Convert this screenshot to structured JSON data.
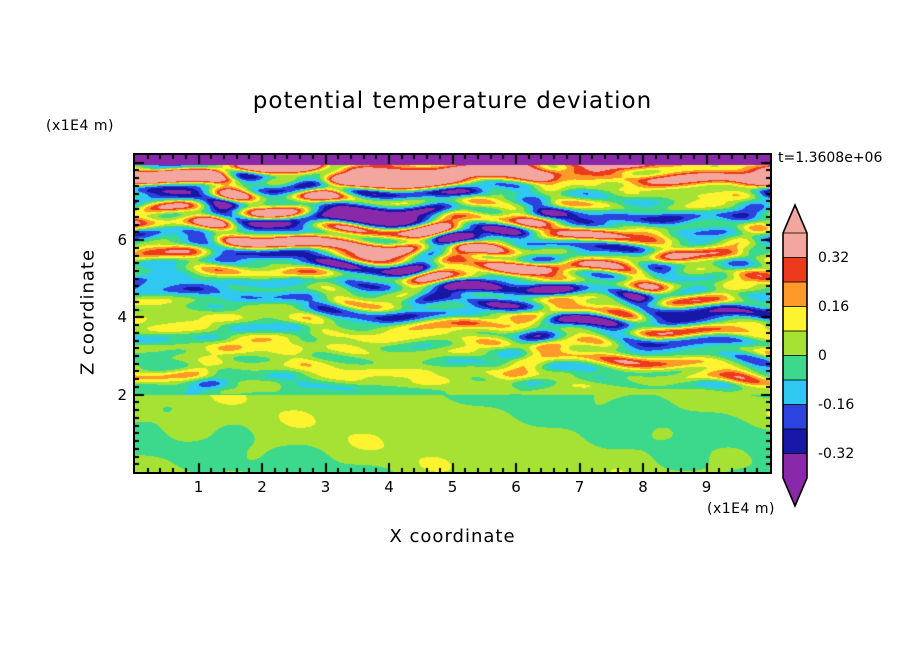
{
  "title": "potential temperature deviation",
  "time_label": "t=1.3608e+06",
  "x_axis": {
    "label": "X coordinate",
    "unit_label": "(x1E4 m)",
    "tick_labels": [
      "1",
      "2",
      "3",
      "4",
      "5",
      "6",
      "7",
      "8",
      "9"
    ],
    "range": [
      0,
      10
    ]
  },
  "z_axis": {
    "label": "Z coordinate",
    "unit_label": "(x1E4 m)",
    "tick_labels": [
      "2",
      "4",
      "6"
    ],
    "range": [
      0,
      8.2
    ]
  },
  "colorbar": {
    "tick_labels": [
      "0.32",
      "0.16",
      "0",
      "-0.16",
      "-0.32"
    ],
    "boundary_indices": [
      1,
      3,
      5,
      7,
      9
    ],
    "segment_colors_top_to_bottom": [
      "#f2a69e",
      "#ee3a1c",
      "#ff9a28",
      "#fdf32f",
      "#a6e234",
      "#3cd98c",
      "#2fc8f0",
      "#2d43e0",
      "#1717a8",
      "#8a28aa"
    ],
    "arrow_top_color": "#f2a69e",
    "arrow_bottom_color": "#8a28aa"
  },
  "chart_data": {
    "type": "heatmap",
    "title": "potential temperature deviation",
    "xlabel": "X coordinate (x1E4 m)",
    "ylabel": "Z coordinate (x1E4 m)",
    "x_range": [
      0,
      10
    ],
    "z_range": [
      0,
      8.2
    ],
    "x_ticks": [
      1,
      2,
      3,
      4,
      5,
      6,
      7,
      8,
      9
    ],
    "z_ticks": [
      2,
      4,
      6
    ],
    "time_annotation": "t=1.3608e+06",
    "value_levels": [
      -0.4,
      -0.32,
      -0.24,
      -0.16,
      -0.08,
      0,
      0.08,
      0.16,
      0.24,
      0.32,
      0.4
    ],
    "labeled_levels": [
      0.32,
      0.16,
      0,
      -0.16,
      -0.32
    ],
    "palette_low_to_high": [
      "#8a28aa",
      "#1717a8",
      "#2d43e0",
      "#2fc8f0",
      "#3cd98c",
      "#a6e234",
      "#fdf32f",
      "#ff9a28",
      "#ee3a1c",
      "#f2a69e"
    ],
    "structure": {
      "lower_region": {
        "z_range": [
          0,
          2
        ],
        "values": "near zero, green background with weak positive yellow-green blobs"
      },
      "middle_region": {
        "z_range": [
          2,
          4
        ],
        "values": "thin wavy horizontal streaks roughly between -0.24 and 0.24"
      },
      "upper_region": {
        "z_range": [
          4,
          7.9
        ],
        "values": "strong layered streaks exceeding +/-0.32 (salmon and purple bands)"
      },
      "top_strip": {
        "z_range": [
          7.95,
          8.2
        ],
        "values": "below -0.32 (purple band along top edge)"
      }
    }
  }
}
